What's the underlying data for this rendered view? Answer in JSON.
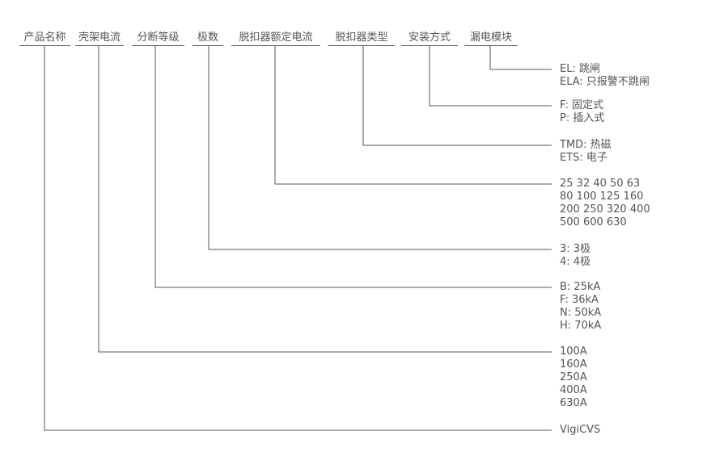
{
  "headers": [
    "产品名称",
    "壳架电流",
    "分断等级",
    "极数",
    "脱扣器额定电流",
    "脱扣器类型",
    "安装方式",
    "漏电模块"
  ],
  "options": [
    [
      "VigiCVS"
    ],
    [
      "100A",
      "160A",
      "250A",
      "400A",
      "630A"
    ],
    [
      "B: 25kA",
      "F: 36kA",
      "N: 50kA",
      "H: 70kA"
    ],
    [
      "3: 3极",
      "4: 4极"
    ],
    [
      "25 32 40 50 63",
      "80 100 125 160",
      "200 250 320 400",
      "500 600 630"
    ],
    [
      "TMD: 热磁",
      "ETS: 电子"
    ],
    [
      "F: 固定式",
      "P: 插入式"
    ],
    [
      "EL: 跳闸",
      "ELA: 只报警不跳闸"
    ]
  ],
  "line_color": "#555555"
}
